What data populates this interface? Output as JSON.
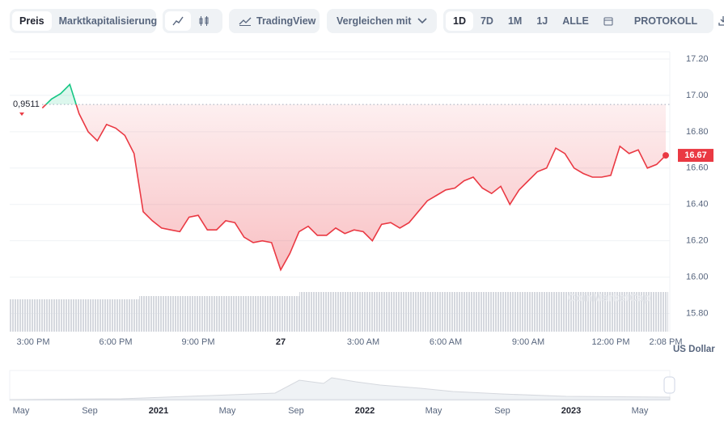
{
  "toolbar": {
    "price": "Preis",
    "market_cap": "Marktkapitalisierung",
    "tradingview": "TradingView",
    "compare": "Vergleichen mit",
    "ranges": [
      "1D",
      "7D",
      "1M",
      "1J",
      "ALLE"
    ],
    "history": "PROTOKOLL"
  },
  "chart_data": {
    "type": "line",
    "categories": [
      "3:00 PM",
      null,
      null,
      null,
      null,
      null,
      null,
      null,
      null,
      "6:00 PM",
      null,
      null,
      null,
      null,
      null,
      null,
      null,
      null,
      "9:00 PM",
      null,
      null,
      null,
      null,
      null,
      null,
      null,
      null,
      "27",
      null,
      null,
      null,
      null,
      null,
      null,
      null,
      null,
      "3:00 AM",
      null,
      null,
      null,
      null,
      null,
      null,
      null,
      null,
      "6:00 AM",
      null,
      null,
      null,
      null,
      null,
      null,
      null,
      null,
      "9:00 AM",
      null,
      null,
      null,
      null,
      null,
      null,
      null,
      null,
      "12:00 PM",
      null,
      null,
      null,
      null,
      null,
      "2:08 PM"
    ],
    "values": [
      null,
      16.93,
      16.98,
      17.01,
      17.06,
      16.9,
      16.8,
      16.75,
      16.84,
      16.82,
      16.78,
      16.68,
      16.36,
      16.31,
      16.27,
      16.26,
      16.25,
      16.33,
      16.34,
      16.26,
      16.26,
      16.31,
      16.3,
      16.22,
      16.19,
      16.2,
      16.19,
      16.04,
      16.13,
      16.25,
      16.28,
      16.23,
      16.23,
      16.27,
      16.24,
      16.26,
      16.25,
      16.2,
      16.29,
      16.3,
      16.27,
      16.3,
      16.36,
      16.42,
      16.45,
      16.48,
      16.49,
      16.53,
      16.55,
      16.49,
      16.46,
      16.5,
      16.4,
      16.48,
      16.53,
      16.58,
      16.6,
      16.71,
      16.68,
      16.6,
      16.57,
      16.55,
      16.55,
      16.56,
      16.72,
      16.68,
      16.7,
      16.6,
      16.62,
      16.67
    ],
    "color": "#ea3943",
    "up_color": "#16c784",
    "reference": {
      "value": 16.95,
      "label": "0,9511"
    },
    "ylim": [
      15.7,
      17.24
    ],
    "yticks": [
      {
        "value": 15.8,
        "label": "15.80"
      },
      {
        "value": 16.0,
        "label": "16.00"
      },
      {
        "value": 16.2,
        "label": "16.20"
      },
      {
        "value": 16.4,
        "label": "16.40"
      },
      {
        "value": 16.6,
        "label": "16.60"
      },
      {
        "value": 16.8,
        "label": "16.80"
      },
      {
        "value": 17.0,
        "label": "17.00"
      },
      {
        "value": 17.2,
        "label": "17.20"
      }
    ],
    "grid": true,
    "y_unit": "US Dollar",
    "watermark": "CoinMarketCap"
  },
  "navigator": {
    "labels": [
      "May",
      "Sep",
      "2021",
      "May",
      "Sep",
      "2022",
      "May",
      "Sep",
      "2023",
      "May"
    ]
  }
}
